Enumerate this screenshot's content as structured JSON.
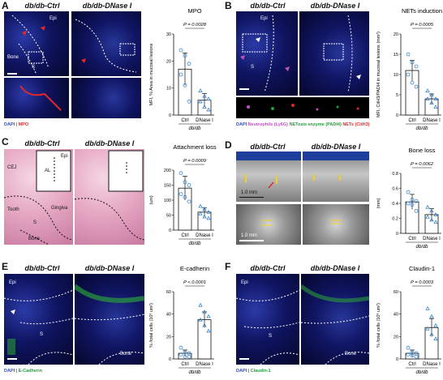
{
  "panels": {
    "A": {
      "label": "A",
      "cond1": "db/db-Ctrl",
      "cond2": "db/db-DNase I",
      "regions": {
        "epi": "Epi",
        "s": "S",
        "bone": "Bone"
      },
      "legend": [
        {
          "text": "DAPI",
          "color": "#2b4bd1"
        },
        {
          "text": " | ",
          "color": "#111"
        },
        {
          "text": "MPO",
          "color": "#e02828"
        }
      ]
    },
    "B": {
      "label": "B",
      "cond1": "db/db-Ctrl",
      "cond2": "db/db-DNase I",
      "regions": {
        "epi": "Epi",
        "s": "S"
      },
      "legend": [
        {
          "text": "DAPI ",
          "color": "#2b4bd1"
        },
        {
          "text": "Neutrophils (Ly6G) ",
          "color": "#c050c0"
        },
        {
          "text": "NETosis enzyme (PADI4) ",
          "color": "#1aa33a"
        },
        {
          "text": "NETs (CitH3)",
          "color": "#e02828"
        }
      ]
    },
    "C": {
      "label": "C",
      "cond1": "db/db-Ctrl",
      "cond2": "db/db-DNase I",
      "regions": {
        "cej": "CEJ",
        "al": "AL",
        "epi": "Epi",
        "tooth": "Tooth",
        "s": "S",
        "gingiva": "Gingiva",
        "bone": "Bone"
      }
    },
    "D": {
      "label": "D",
      "cond1": "db/db-Ctrl",
      "cond2": "db/db-DNase I",
      "scale1": "1.0 mm",
      "scale2": "1.0 mm"
    },
    "E": {
      "label": "E",
      "cond1": "db/db-Ctrl",
      "cond2": "db/db-DNase I",
      "regions": {
        "epi": "Epi",
        "s": "S",
        "bone": "Bone"
      },
      "legend": [
        {
          "text": "DAPI",
          "color": "#2b4bd1"
        },
        {
          "text": " | ",
          "color": "#111"
        },
        {
          "text": "E-Cadherin",
          "color": "#1aa33a"
        }
      ]
    },
    "F": {
      "label": "F",
      "cond1": "db/db-Ctrl",
      "cond2": "db/db-DNase I",
      "regions": {
        "epi": "Epi",
        "s": "S",
        "bone": "Bone"
      },
      "legend": [
        {
          "text": "DAPI",
          "color": "#2b4bd1"
        },
        {
          "text": " | ",
          "color": "#111"
        },
        {
          "text": "Claudin-1",
          "color": "#1aa33a"
        }
      ]
    }
  },
  "chart_data": [
    {
      "id": "A",
      "type": "bar",
      "title": "MPO",
      "ylabel": "MFI, % Area in mucosal lesions",
      "categories": [
        "Ctrl",
        "DNase I"
      ],
      "group": "db/db",
      "values": [
        17,
        5.5
      ],
      "errors": [
        6,
        2.5
      ],
      "points": [
        [
          24,
          22,
          19,
          15,
          11,
          5
        ],
        [
          9,
          7,
          6,
          5,
          3,
          2
        ]
      ],
      "ylim": [
        0,
        30
      ],
      "yticks": [
        0,
        10,
        20,
        30
      ],
      "pvalue": "P = 0.0028"
    },
    {
      "id": "B",
      "type": "bar",
      "title": "NETs induction",
      "ylabel": "MFI, CitH3/PADI4 in mucosal lesions (mm²)",
      "categories": [
        "Ctrl",
        "DNase I"
      ],
      "group": "db/db",
      "values": [
        11,
        4
      ],
      "errors": [
        2.5,
        1.2
      ],
      "points": [
        [
          15,
          13,
          12,
          10,
          8,
          7
        ],
        [
          6,
          5,
          4,
          4,
          3,
          2
        ]
      ],
      "ylim": [
        0,
        20
      ],
      "yticks": [
        0,
        5,
        10,
        15,
        20
      ],
      "pvalue": "P = 0.0005"
    },
    {
      "id": "C",
      "type": "bar",
      "title": "Attachment loss",
      "ylabel": "(um)",
      "categories": [
        "Ctrl",
        "DNase I"
      ],
      "group": "db/db",
      "values": [
        140,
        60
      ],
      "errors": [
        40,
        15
      ],
      "points": [
        [
          190,
          160,
          150,
          120,
          110,
          95
        ],
        [
          80,
          70,
          60,
          55,
          45,
          40
        ]
      ],
      "ylim": [
        0,
        200
      ],
      "yticks": [
        0,
        50,
        100,
        150,
        200
      ],
      "pvalue": "P = 0.0009"
    },
    {
      "id": "D",
      "type": "bar",
      "title": "Bone loss",
      "ylabel": "(mm)",
      "categories": [
        "Ctrl",
        "DNase I"
      ],
      "group": "db/db",
      "values": [
        0.42,
        0.25
      ],
      "errors": [
        0.1,
        0.08
      ],
      "points": [
        [
          0.55,
          0.45,
          0.43,
          0.4,
          0.38,
          0.3
        ],
        [
          0.35,
          0.3,
          0.25,
          0.22,
          0.18,
          0.15
        ]
      ],
      "ylim": [
        0,
        0.8
      ],
      "yticks": [
        0,
        0.2,
        0.4,
        0.6,
        0.8
      ],
      "pvalue": "P = 0.0062"
    },
    {
      "id": "E",
      "type": "bar",
      "title": "E-cadherin",
      "ylabel": "% /total cells (10³ um²)",
      "categories": [
        "Ctrl",
        "DNase I"
      ],
      "group": "db/db",
      "values": [
        5,
        35
      ],
      "errors": [
        3,
        7
      ],
      "points": [
        [
          10,
          6,
          5,
          4,
          2,
          2
        ],
        [
          48,
          42,
          38,
          35,
          30,
          25
        ]
      ],
      "ylim": [
        0,
        60
      ],
      "yticks": [
        0,
        20,
        40,
        60
      ],
      "pvalue": "P < 0.0001"
    },
    {
      "id": "F",
      "type": "bar",
      "title": "Claudin-1",
      "ylabel": "% /total cells (10³ um²)",
      "categories": [
        "Ctrl",
        "DNase I"
      ],
      "group": "db/db",
      "values": [
        5,
        28
      ],
      "errors": [
        3,
        8
      ],
      "points": [
        [
          10,
          6,
          5,
          4,
          3,
          2
        ],
        [
          45,
          38,
          30,
          27,
          22,
          18
        ]
      ],
      "ylim": [
        0,
        60
      ],
      "yticks": [
        0,
        20,
        40,
        60
      ],
      "pvalue": "P = 0.0003"
    }
  ]
}
